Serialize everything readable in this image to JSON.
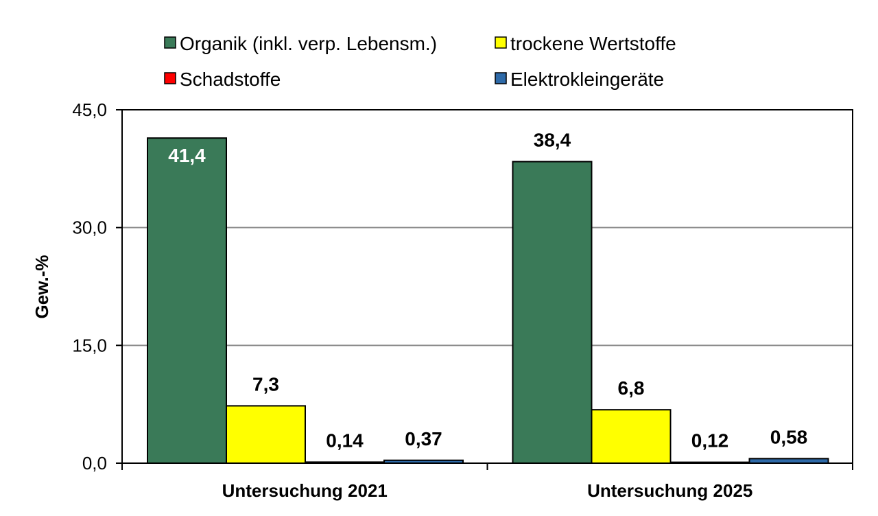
{
  "chart_data": {
    "type": "bar",
    "ylabel": "Gew.-%",
    "ylim": [
      0,
      45
    ],
    "yticks": [
      "0,0",
      "15,0",
      "30,0",
      "45,0"
    ],
    "yticks_values": [
      0,
      15,
      30,
      45
    ],
    "grid": true,
    "legend_position": "top",
    "categories": [
      "Untersuchung 2021",
      "Untersuchung 2025"
    ],
    "series": [
      {
        "name": "Organik (inkl. verp. Lebensm.)",
        "color": "#3a7a58",
        "values": [
          41.4,
          38.4
        ],
        "labels": [
          "41,4",
          "38,4"
        ]
      },
      {
        "name": "trockene Wertstoffe",
        "color": "#ffff00",
        "values": [
          7.3,
          6.8
        ],
        "labels": [
          "7,3",
          "6,8"
        ]
      },
      {
        "name": "Schadstoffe",
        "color": "#ff0000",
        "values": [
          0.14,
          0.12
        ],
        "labels": [
          "0,14",
          "0,12"
        ]
      },
      {
        "name": "Elektrokleingeräte",
        "color": "#2e6aa8",
        "values": [
          0.37,
          0.58
        ],
        "labels": [
          "0,37",
          "0,58"
        ]
      }
    ]
  }
}
